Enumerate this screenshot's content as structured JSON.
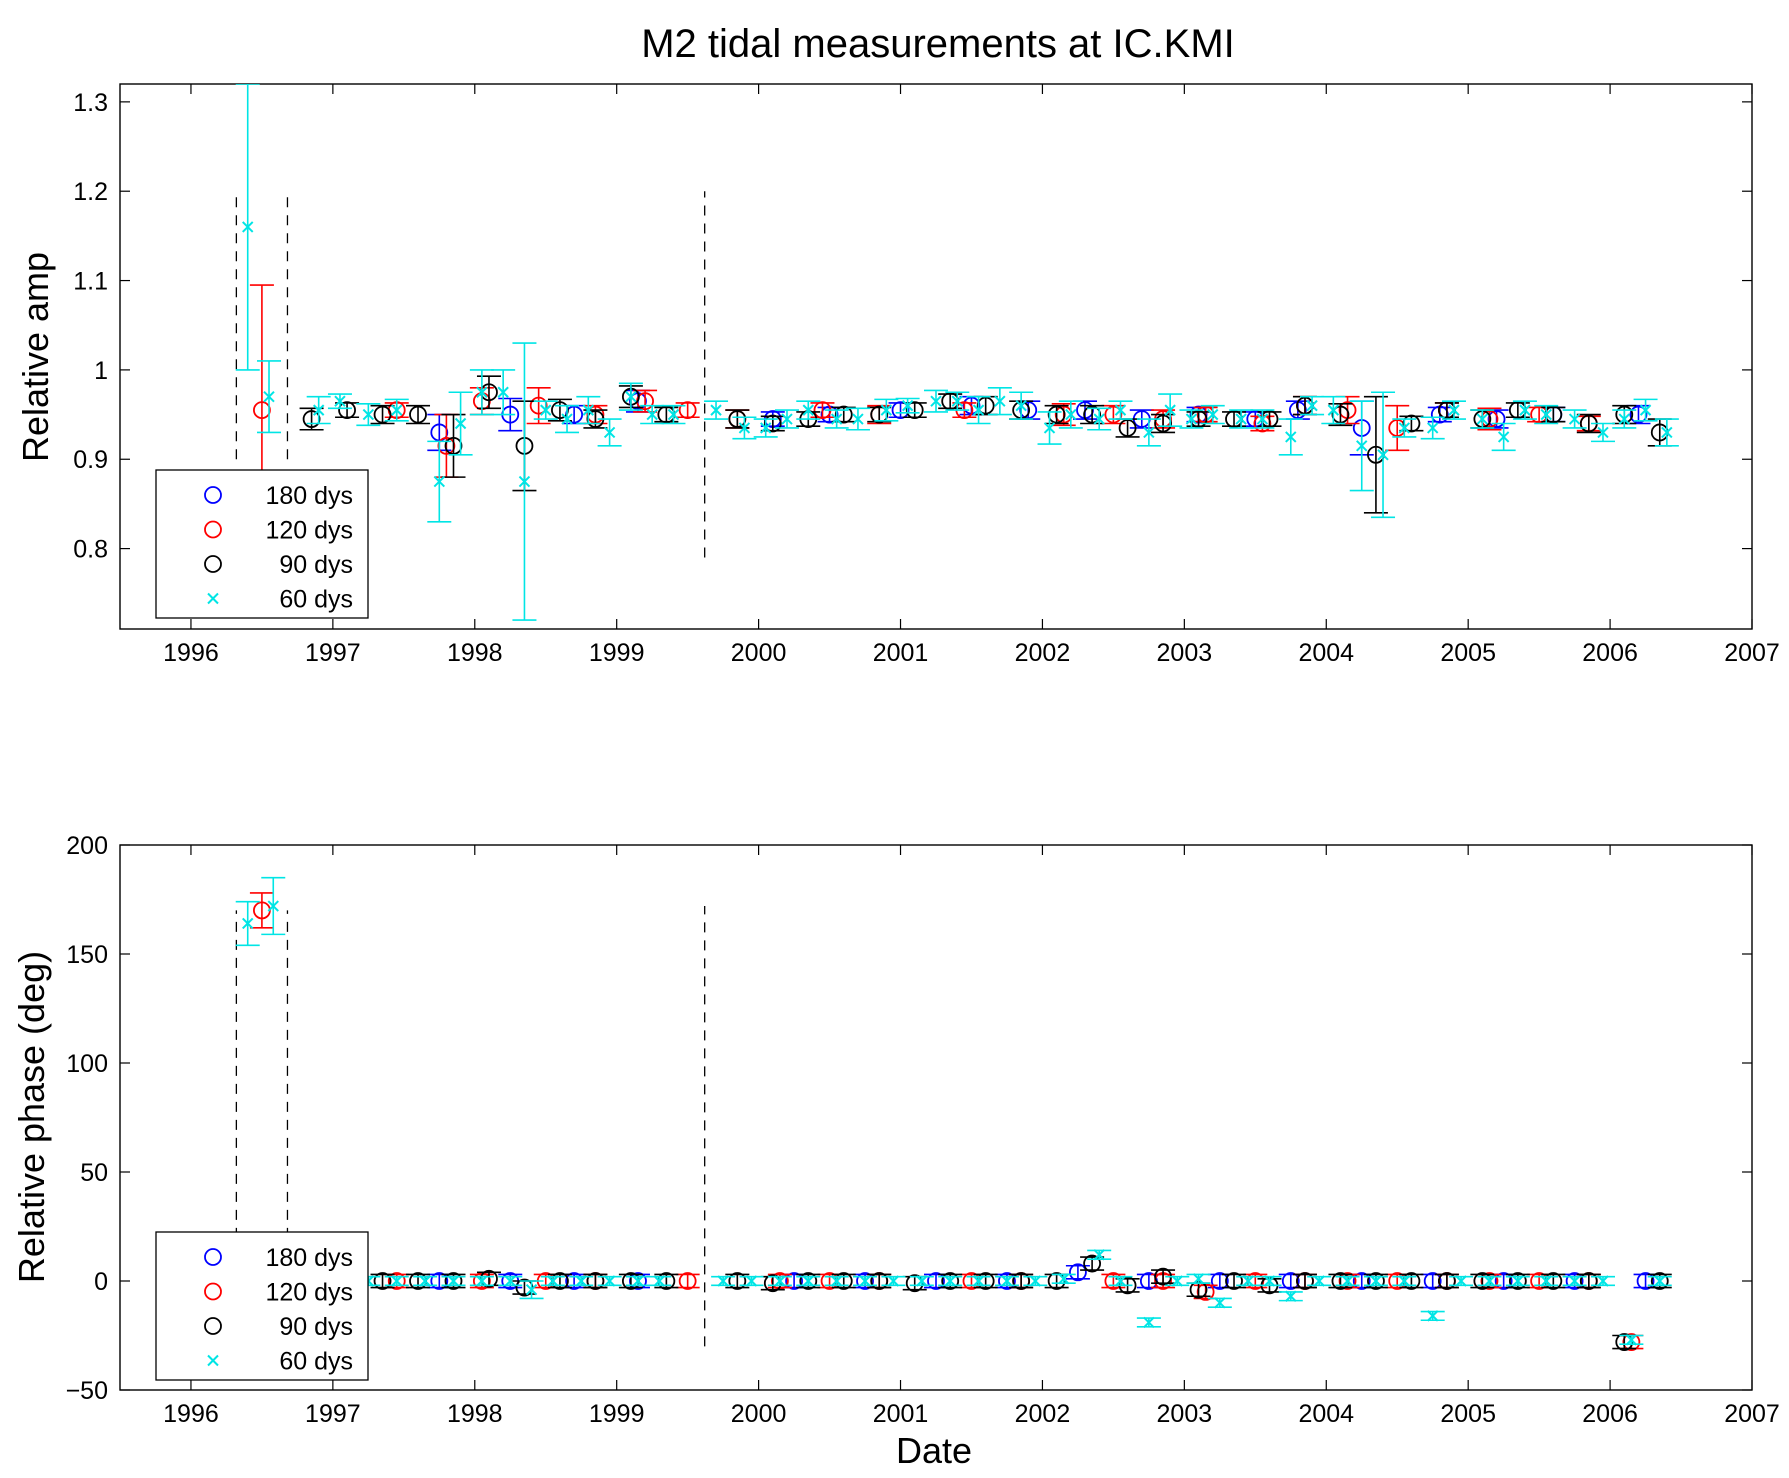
{
  "chart_data": [
    {
      "type": "scatter",
      "title": "M2 tidal measurements at IC.KMI",
      "ylabel": "Relative amp",
      "xlabel": "",
      "xlim": [
        1995.5,
        2007
      ],
      "ylim": [
        0.71,
        1.32
      ],
      "xticks": [
        1996,
        1997,
        1998,
        1999,
        2000,
        2001,
        2002,
        2003,
        2004,
        2005,
        2006,
        2007
      ],
      "yticks": [
        0.8,
        0.9,
        1,
        1.1,
        1.2,
        1.3
      ],
      "ytick_labels": [
        "0.8",
        "0.9",
        "1",
        "1.1",
        "1.2",
        "1.3"
      ],
      "grid": false,
      "legend_position": "bottom-left",
      "vlines": [
        {
          "x": 1996.32,
          "y0": 0.9,
          "y1": 1.2
        },
        {
          "x": 1996.68,
          "y0": 0.9,
          "y1": 1.2
        },
        {
          "x": 1999.62,
          "y0": 0.79,
          "y1": 1.2
        }
      ],
      "series": [
        {
          "name": "180 dys",
          "marker": "o",
          "color": "#0000ff",
          "x": [
            1997.75,
            1998.25,
            1998.7,
            1999.15,
            2000.1,
            2000.5,
            2001.0,
            2001.5,
            2001.9,
            2002.3,
            2002.7,
            2003.1,
            2003.5,
            2003.8,
            2004.25,
            2004.8,
            2005.2,
            2005.6,
            2006.2
          ],
          "y": [
            0.93,
            0.95,
            0.95,
            0.965,
            0.945,
            0.95,
            0.955,
            0.96,
            0.955,
            0.955,
            0.945,
            0.95,
            0.945,
            0.955,
            0.935,
            0.95,
            0.945,
            0.95,
            0.95
          ],
          "err": [
            0.02,
            0.018,
            0.01,
            0.012,
            0.008,
            0.008,
            0.008,
            0.01,
            0.01,
            0.01,
            0.01,
            0.008,
            0.008,
            0.01,
            0.03,
            0.008,
            0.01,
            0.008,
            0.01
          ]
        },
        {
          "name": "120 dys",
          "marker": "o",
          "color": "#ff0000",
          "x": [
            1996.5,
            1997.45,
            1997.8,
            1998.05,
            1998.45,
            1998.85,
            1999.2,
            1999.5,
            1999.85,
            2000.45,
            2000.85,
            2001.45,
            2002.15,
            2002.5,
            2002.85,
            2003.15,
            2003.55,
            2003.85,
            2004.15,
            2004.5,
            2004.85,
            2005.15,
            2005.5,
            2005.85
          ],
          "y": [
            0.955,
            0.955,
            0.915,
            0.965,
            0.96,
            0.95,
            0.965,
            0.955,
            0.945,
            0.955,
            0.95,
            0.955,
            0.95,
            0.95,
            0.945,
            0.95,
            0.94,
            0.96,
            0.955,
            0.935,
            0.955,
            0.945,
            0.95,
            0.94
          ],
          "err": [
            0.14,
            0.008,
            0.035,
            0.015,
            0.02,
            0.01,
            0.012,
            0.008,
            0.01,
            0.008,
            0.01,
            0.008,
            0.012,
            0.01,
            0.01,
            0.008,
            0.008,
            0.01,
            0.015,
            0.025,
            0.008,
            0.012,
            0.008,
            0.008
          ]
        },
        {
          "name": "90 dys",
          "marker": "o",
          "color": "#000000",
          "x": [
            1996.85,
            1997.1,
            1997.35,
            1997.6,
            1997.85,
            1998.1,
            1998.35,
            1998.6,
            1998.85,
            1999.1,
            1999.35,
            1999.85,
            2000.1,
            2000.35,
            2000.6,
            2000.85,
            2001.1,
            2001.35,
            2001.6,
            2001.85,
            2002.1,
            2002.35,
            2002.6,
            2002.85,
            2003.1,
            2003.35,
            2003.6,
            2003.85,
            2004.1,
            2004.35,
            2004.6,
            2004.85,
            2005.1,
            2005.35,
            2005.6,
            2005.85,
            2006.1,
            2006.35
          ],
          "y": [
            0.945,
            0.955,
            0.95,
            0.95,
            0.915,
            0.975,
            0.915,
            0.955,
            0.945,
            0.97,
            0.95,
            0.945,
            0.94,
            0.945,
            0.95,
            0.95,
            0.955,
            0.965,
            0.96,
            0.955,
            0.95,
            0.95,
            0.935,
            0.94,
            0.945,
            0.945,
            0.945,
            0.96,
            0.95,
            0.905,
            0.94,
            0.955,
            0.945,
            0.955,
            0.95,
            0.94,
            0.95,
            0.93
          ],
          "err": [
            0.012,
            0.008,
            0.01,
            0.01,
            0.035,
            0.018,
            0.05,
            0.012,
            0.01,
            0.012,
            0.008,
            0.01,
            0.008,
            0.008,
            0.008,
            0.008,
            0.008,
            0.008,
            0.01,
            0.01,
            0.01,
            0.01,
            0.01,
            0.01,
            0.008,
            0.008,
            0.008,
            0.01,
            0.012,
            0.065,
            0.008,
            0.008,
            0.01,
            0.008,
            0.008,
            0.01,
            0.01,
            0.015
          ]
        },
        {
          "name": "60 dys",
          "marker": "x",
          "color": "#00e5e5",
          "x": [
            1996.4,
            1996.55,
            1996.9,
            1997.05,
            1997.25,
            1997.45,
            1997.75,
            1997.9,
            1998.05,
            1998.2,
            1998.35,
            1998.5,
            1998.65,
            1998.8,
            1998.95,
            1999.1,
            1999.25,
            1999.4,
            1999.7,
            1999.9,
            2000.05,
            2000.2,
            2000.35,
            2000.55,
            2000.7,
            2000.9,
            2001.05,
            2001.25,
            2001.4,
            2001.55,
            2001.7,
            2001.85,
            2002.05,
            2002.2,
            2002.4,
            2002.55,
            2002.75,
            2002.9,
            2003.05,
            2003.2,
            2003.4,
            2003.55,
            2003.75,
            2003.9,
            2004.05,
            2004.25,
            2004.4,
            2004.55,
            2004.75,
            2004.9,
            2005.1,
            2005.25,
            2005.4,
            2005.55,
            2005.75,
            2005.95,
            2006.1,
            2006.25,
            2006.4
          ],
          "y": [
            1.16,
            0.97,
            0.955,
            0.965,
            0.95,
            0.955,
            0.875,
            0.94,
            0.975,
            0.975,
            0.875,
            0.955,
            0.945,
            0.955,
            0.93,
            0.97,
            0.95,
            0.95,
            0.955,
            0.935,
            0.935,
            0.945,
            0.955,
            0.945,
            0.945,
            0.955,
            0.96,
            0.965,
            0.965,
            0.955,
            0.965,
            0.96,
            0.935,
            0.95,
            0.945,
            0.955,
            0.93,
            0.955,
            0.945,
            0.95,
            0.945,
            0.945,
            0.925,
            0.96,
            0.955,
            0.915,
            0.905,
            0.935,
            0.935,
            0.955,
            0.945,
            0.925,
            0.955,
            0.95,
            0.945,
            0.93,
            0.945,
            0.955,
            0.93
          ],
          "err": [
            0.16,
            0.04,
            0.015,
            0.008,
            0.012,
            0.012,
            0.045,
            0.035,
            0.025,
            0.025,
            0.155,
            0.01,
            0.015,
            0.015,
            0.015,
            0.015,
            0.01,
            0.01,
            0.01,
            0.012,
            0.01,
            0.01,
            0.01,
            0.01,
            0.012,
            0.012,
            0.008,
            0.012,
            0.01,
            0.015,
            0.015,
            0.015,
            0.018,
            0.015,
            0.012,
            0.01,
            0.015,
            0.018,
            0.01,
            0.01,
            0.01,
            0.01,
            0.02,
            0.01,
            0.015,
            0.05,
            0.07,
            0.01,
            0.012,
            0.01,
            0.01,
            0.015,
            0.01,
            0.01,
            0.01,
            0.01,
            0.01,
            0.012,
            0.015
          ]
        }
      ]
    },
    {
      "type": "scatter",
      "title": "",
      "ylabel": "Relative phase (deg)",
      "xlabel": "Date",
      "xlim": [
        1995.5,
        2007
      ],
      "ylim": [
        -50,
        200
      ],
      "xticks": [
        1996,
        1997,
        1998,
        1999,
        2000,
        2001,
        2002,
        2003,
        2004,
        2005,
        2006,
        2007
      ],
      "yticks": [
        -50,
        0,
        50,
        100,
        150,
        200
      ],
      "ytick_labels": [
        "−50",
        "0",
        "50",
        "100",
        "150",
        "200"
      ],
      "grid": false,
      "legend_position": "bottom-left",
      "vlines": [
        {
          "x": 1996.32,
          "y0": -5,
          "y1": 170
        },
        {
          "x": 1996.68,
          "y0": -5,
          "y1": 170
        },
        {
          "x": 1999.62,
          "y0": -30,
          "y1": 172
        }
      ],
      "series": [
        {
          "name": "180 dys",
          "marker": "o",
          "color": "#0000ff",
          "x": [
            1997.75,
            1998.25,
            1998.7,
            1999.15,
            2000.25,
            2000.75,
            2001.25,
            2001.75,
            2002.25,
            2002.75,
            2003.25,
            2003.75,
            2004.25,
            2004.75,
            2005.25,
            2005.75,
            2006.25
          ],
          "y": [
            0,
            0,
            0,
            0,
            0,
            0,
            0,
            0,
            4,
            0,
            0,
            0,
            0,
            0,
            0,
            0,
            0
          ],
          "err": [
            3,
            3,
            3,
            3,
            3,
            3,
            3,
            3,
            3,
            3,
            3,
            3,
            3,
            3,
            3,
            3,
            3
          ]
        },
        {
          "name": "120 dys",
          "marker": "o",
          "color": "#ff0000",
          "x": [
            1996.5,
            1997.45,
            1998.05,
            1998.5,
            1998.85,
            1999.5,
            2000.15,
            2000.5,
            2000.85,
            2001.5,
            2001.85,
            2002.5,
            2002.85,
            2003.15,
            2003.5,
            2003.85,
            2004.15,
            2004.5,
            2004.85,
            2005.15,
            2005.5,
            2005.85,
            2006.15
          ],
          "y": [
            170,
            0,
            0,
            0,
            0,
            0,
            0,
            0,
            0,
            0,
            0,
            0,
            0,
            -5,
            0,
            0,
            0,
            0,
            0,
            0,
            0,
            0,
            -28
          ],
          "err": [
            8,
            3,
            3,
            3,
            3,
            3,
            3,
            3,
            3,
            3,
            3,
            3,
            3,
            3,
            3,
            3,
            3,
            3,
            3,
            3,
            3,
            3,
            3
          ]
        },
        {
          "name": "90 dys",
          "marker": "o",
          "color": "#000000",
          "x": [
            1997.35,
            1997.6,
            1997.85,
            1998.1,
            1998.35,
            1998.6,
            1998.85,
            1999.1,
            1999.35,
            1999.85,
            2000.1,
            2000.35,
            2000.6,
            2000.85,
            2001.1,
            2001.35,
            2001.6,
            2001.85,
            2002.1,
            2002.35,
            2002.6,
            2002.85,
            2003.1,
            2003.35,
            2003.6,
            2003.85,
            2004.1,
            2004.35,
            2004.6,
            2004.85,
            2005.1,
            2005.35,
            2005.6,
            2005.85,
            2006.1,
            2006.35
          ],
          "y": [
            0,
            0,
            0,
            1,
            -3,
            0,
            0,
            0,
            0,
            0,
            -1,
            0,
            0,
            0,
            -1,
            0,
            0,
            0,
            0,
            8,
            -2,
            2,
            -4,
            0,
            -2,
            0,
            0,
            0,
            0,
            0,
            0,
            0,
            0,
            0,
            -28,
            0
          ],
          "err": [
            3,
            3,
            3,
            3,
            3,
            3,
            3,
            3,
            3,
            3,
            3,
            3,
            3,
            3,
            3,
            3,
            3,
            3,
            3,
            3,
            3,
            3,
            3,
            3,
            3,
            3,
            3,
            3,
            3,
            3,
            3,
            3,
            3,
            3,
            3,
            3
          ]
        },
        {
          "name": "60 dys",
          "marker": "x",
          "color": "#00e5e5",
          "x": [
            1996.4,
            1996.58,
            1997.05,
            1997.25,
            1997.45,
            1997.65,
            1997.85,
            1998.05,
            1998.25,
            1998.4,
            1998.55,
            1998.75,
            1998.95,
            1999.15,
            1999.3,
            1999.75,
            1999.95,
            2000.15,
            2000.35,
            2000.55,
            2000.75,
            2000.95,
            2001.15,
            2001.35,
            2001.55,
            2001.75,
            2001.95,
            2002.15,
            2002.4,
            2002.55,
            2002.75,
            2002.95,
            2003.1,
            2003.25,
            2003.45,
            2003.6,
            2003.75,
            2003.95,
            2004.15,
            2004.35,
            2004.55,
            2004.75,
            2004.95,
            2005.15,
            2005.35,
            2005.55,
            2005.75,
            2005.95,
            2006.15,
            2006.35
          ],
          "y": [
            164,
            172,
            0,
            0,
            0,
            0,
            0,
            0,
            0,
            -4,
            0,
            0,
            0,
            0,
            0,
            0,
            0,
            0,
            0,
            0,
            0,
            0,
            0,
            0,
            0,
            0,
            0,
            1,
            12,
            0,
            -19,
            0,
            1,
            -10,
            0,
            0,
            -7,
            0,
            0,
            0,
            0,
            -16,
            0,
            0,
            0,
            0,
            0,
            0,
            -27,
            0
          ],
          "err": [
            10,
            13,
            2,
            2,
            2,
            2,
            2,
            2,
            2,
            4,
            2,
            2,
            2,
            2,
            2,
            2,
            2,
            2,
            2,
            2,
            2,
            2,
            2,
            2,
            2,
            2,
            2,
            2,
            2,
            2,
            2,
            2,
            2,
            2,
            2,
            2,
            2,
            2,
            2,
            2,
            2,
            2,
            2,
            2,
            2,
            2,
            2,
            2,
            2,
            2
          ]
        }
      ]
    }
  ]
}
